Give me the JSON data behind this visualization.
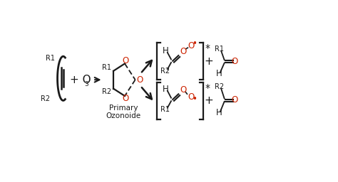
{
  "bg_color": "#ffffff",
  "text_color": "#1a1a1a",
  "red_color": "#cc2200",
  "fig_width": 4.74,
  "fig_height": 2.56,
  "dpi": 100,
  "xlim": [
    0,
    10
  ],
  "ylim": [
    0,
    5.2
  ]
}
